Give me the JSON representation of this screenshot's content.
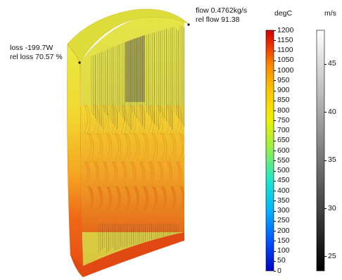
{
  "annotations": {
    "loss": "loss -199.7W",
    "rel_loss": "rel loss 70.57 %",
    "flow": "flow 0.4762kg/s",
    "rel_flow": "rel flow 91.38"
  },
  "temperature_legend": {
    "unit": "degC",
    "ticks": [
      "1200",
      "1150",
      "1100",
      "1050",
      "1000",
      "950",
      "900",
      "850",
      "800",
      "750",
      "700",
      "650",
      "600",
      "550",
      "500",
      "450",
      "400",
      "350",
      "300",
      "250",
      "200",
      "150",
      "100",
      "50",
      "0"
    ],
    "min": 0,
    "max": 1200,
    "colors": [
      "#0000c8",
      "#0050ff",
      "#00b4ff",
      "#20e6c8",
      "#a0f040",
      "#f0f000",
      "#ffc800",
      "#ff8c00",
      "#e83000",
      "#d00000"
    ]
  },
  "velocity_legend": {
    "unit": "m/s",
    "ticks": [
      "45",
      "40",
      "35",
      "30",
      "25"
    ],
    "min": 23.5,
    "max": 48.5
  },
  "colors": {
    "shell_top": "#e8e840",
    "shell_mid": "#f4b020",
    "shell_bottom": "#e84810",
    "streamline": "#555555"
  }
}
